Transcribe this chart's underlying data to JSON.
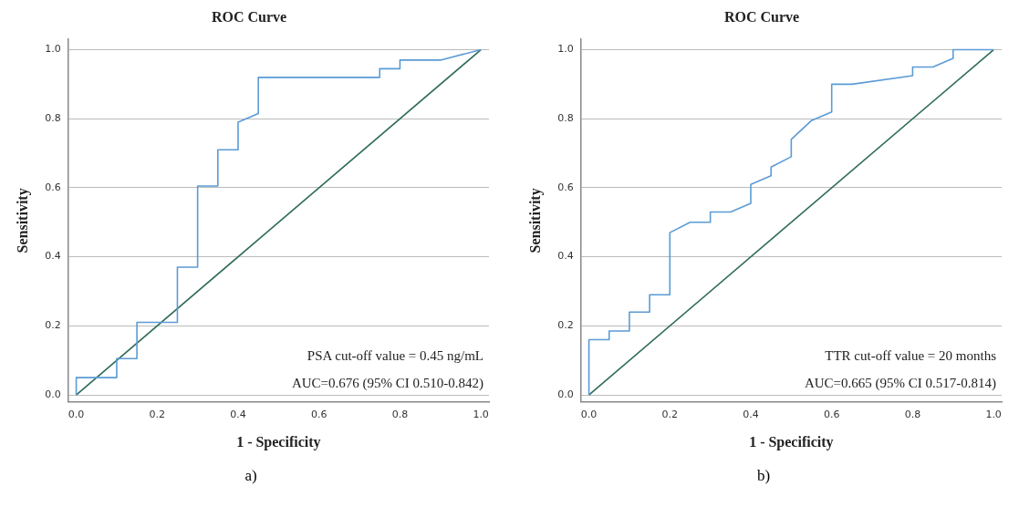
{
  "chart_data": [
    {
      "type": "line",
      "title": "ROC Curve",
      "xlabel": "1 - Specificity",
      "ylabel": "Sensitivity",
      "series": [
        {
          "color": "#5b9bd5",
          "x": [
            0,
            0,
            0.1,
            0.1,
            0.15,
            0.15,
            0.25,
            0.25,
            0.3,
            0.3,
            0.35,
            0.35,
            0.4,
            0.4,
            0.45,
            0.45,
            0.75,
            0.75,
            0.8,
            0.8,
            0.9,
            1
          ],
          "values": [
            0,
            0.05,
            0.05,
            0.105,
            0.105,
            0.21,
            0.21,
            0.37,
            0.37,
            0.605,
            0.605,
            0.71,
            0.71,
            0.79,
            0.815,
            0.92,
            0.92,
            0.945,
            0.945,
            0.97,
            0.97,
            1
          ]
        },
        {
          "color": "#2f6b58",
          "x": [
            0,
            1
          ],
          "values": [
            0,
            1
          ]
        }
      ],
      "xlim": [
        -0.02,
        1.02
      ],
      "ylim": [
        -0.02,
        1.03
      ],
      "xticks": [
        {
          "value": 0,
          "label": "0.0"
        },
        {
          "value": 0.2,
          "label": "0.2"
        },
        {
          "value": 0.4,
          "label": "0.4"
        },
        {
          "value": 0.6,
          "label": "0.6"
        },
        {
          "value": 0.8,
          "label": "0.8"
        },
        {
          "value": 1,
          "label": "1.0"
        }
      ],
      "yticks": [
        {
          "value": 0,
          "label": "0.0"
        },
        {
          "value": 0.2,
          "label": "0.2"
        },
        {
          "value": 0.4,
          "label": "0.4"
        },
        {
          "value": 0.6,
          "label": "0.6"
        },
        {
          "value": 0.8,
          "label": "0.8"
        },
        {
          "value": 1,
          "label": "1.0"
        }
      ],
      "grid": "y",
      "legend": false,
      "marker": "none",
      "line_style": "solid",
      "annotations": [
        "PSA cut-off value = 0.45 ng/mL",
        "AUC=0.676 (95% CI 0.510-0.842)",
        "a)"
      ]
    },
    {
      "type": "line",
      "title": "ROC Curve",
      "xlabel": "1 - Specificity",
      "ylabel": "Sensitivity",
      "series": [
        {
          "color": "#5b9bd5",
          "x": [
            0,
            0,
            0.05,
            0.05,
            0.1,
            0.1,
            0.15,
            0.15,
            0.2,
            0.2,
            0.25,
            0.3,
            0.3,
            0.35,
            0.4,
            0.4,
            0.45,
            0.45,
            0.5,
            0.5,
            0.55,
            0.6,
            0.6,
            0.65,
            0.8,
            0.8,
            0.85,
            0.9,
            0.9,
            1
          ],
          "values": [
            0,
            0.16,
            0.16,
            0.185,
            0.185,
            0.24,
            0.24,
            0.29,
            0.29,
            0.47,
            0.5,
            0.5,
            0.53,
            0.53,
            0.555,
            0.61,
            0.635,
            0.66,
            0.69,
            0.74,
            0.795,
            0.82,
            0.9,
            0.9,
            0.925,
            0.95,
            0.95,
            0.975,
            1,
            1
          ]
        },
        {
          "color": "#2f6b58",
          "x": [
            0,
            1
          ],
          "values": [
            0,
            1
          ]
        }
      ],
      "xlim": [
        -0.02,
        1.02
      ],
      "ylim": [
        -0.02,
        1.03
      ],
      "xticks": [
        {
          "value": 0,
          "label": "0.0"
        },
        {
          "value": 0.2,
          "label": "0.2"
        },
        {
          "value": 0.4,
          "label": "0.4"
        },
        {
          "value": 0.6,
          "label": "0.6"
        },
        {
          "value": 0.8,
          "label": "0.8"
        },
        {
          "value": 1,
          "label": "1.0"
        }
      ],
      "yticks": [
        {
          "value": 0,
          "label": "0.0"
        },
        {
          "value": 0.2,
          "label": "0.2"
        },
        {
          "value": 0.4,
          "label": "0.4"
        },
        {
          "value": 0.6,
          "label": "0.6"
        },
        {
          "value": 0.8,
          "label": "0.8"
        },
        {
          "value": 1,
          "label": "1.0"
        }
      ],
      "grid": "y",
      "legend": false,
      "marker": "none",
      "line_style": "solid",
      "annotations": [
        "TTR cut-off value = 20 months",
        "AUC=0.665 (95% CI 0.517-0.814)",
        "b)"
      ]
    }
  ]
}
